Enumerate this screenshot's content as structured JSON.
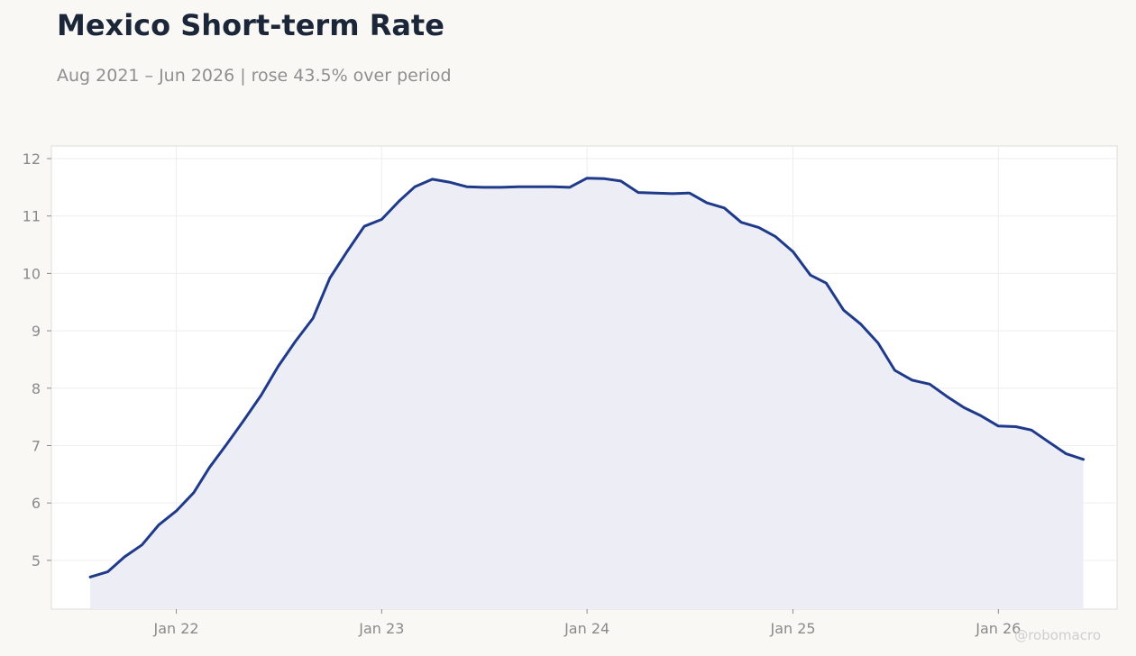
{
  "header": {
    "title": "Mexico Short-term Rate",
    "subtitle": "Aug 2021 – Jun 2026 | rose 43.5% over period"
  },
  "watermark": "@robomacro",
  "colors": {
    "line": "#1f3a8a",
    "area": "#edeef5",
    "background": "#f9f8f5",
    "plot_background": "#ffffff",
    "grid": "#eeeeee"
  },
  "chart_data": {
    "type": "area",
    "title": "Mexico Short-term Rate",
    "xlabel": "",
    "ylabel": "",
    "grid": true,
    "legend": "none",
    "x_ticks": [
      {
        "date": "2022-01-01",
        "label": "Jan 22"
      },
      {
        "date": "2023-01-01",
        "label": "Jan 23"
      },
      {
        "date": "2024-01-01",
        "label": "Jan 24"
      },
      {
        "date": "2025-01-01",
        "label": "Jan 25"
      },
      {
        "date": "2026-01-01",
        "label": "Jan 26"
      }
    ],
    "y_ticks": [
      5,
      6,
      7,
      8,
      9,
      10,
      11,
      12
    ],
    "xlim": [
      "2021-05-24",
      "2026-07-31"
    ],
    "ylim": [
      4.15,
      12.22
    ],
    "series": [
      {
        "x": [
          "2021-08",
          "2021-09",
          "2021-10",
          "2021-11",
          "2021-12",
          "2022-01",
          "2022-02",
          "2022-03",
          "2022-04",
          "2022-05",
          "2022-06",
          "2022-07",
          "2022-08",
          "2022-09",
          "2022-10",
          "2022-11",
          "2022-12",
          "2023-01",
          "2023-02",
          "2023-03",
          "2023-04",
          "2023-05",
          "2023-06",
          "2023-07",
          "2023-08",
          "2023-09",
          "2023-10",
          "2023-11",
          "2023-12",
          "2024-01",
          "2024-02",
          "2024-03",
          "2024-04",
          "2024-05",
          "2024-06",
          "2024-07",
          "2024-08",
          "2024-09",
          "2024-10",
          "2024-11",
          "2024-12",
          "2025-01",
          "2025-02",
          "2025-03",
          "2025-04",
          "2025-05",
          "2025-06",
          "2025-07",
          "2025-08",
          "2025-09",
          "2025-10",
          "2025-11",
          "2025-12",
          "2026-01",
          "2026-02",
          "2026-03",
          "2026-04",
          "2026-05",
          "2026-06"
        ],
        "values": [
          4.71,
          4.8,
          5.06,
          5.27,
          5.62,
          5.86,
          6.18,
          6.62,
          7.03,
          7.44,
          7.88,
          8.38,
          8.82,
          9.22,
          9.92,
          10.39,
          10.82,
          10.94,
          11.26,
          11.51,
          11.64,
          11.59,
          11.51,
          11.5,
          11.5,
          11.51,
          11.51,
          11.51,
          11.5,
          11.66,
          11.65,
          11.61,
          11.41,
          11.4,
          11.39,
          11.4,
          11.23,
          11.14,
          10.89,
          10.8,
          10.64,
          10.38,
          9.97,
          9.83,
          9.36,
          9.12,
          8.79,
          8.31,
          8.14,
          8.07,
          7.86,
          7.66,
          7.52,
          7.34,
          7.33,
          7.27,
          7.06,
          6.86,
          6.76
        ]
      }
    ]
  }
}
